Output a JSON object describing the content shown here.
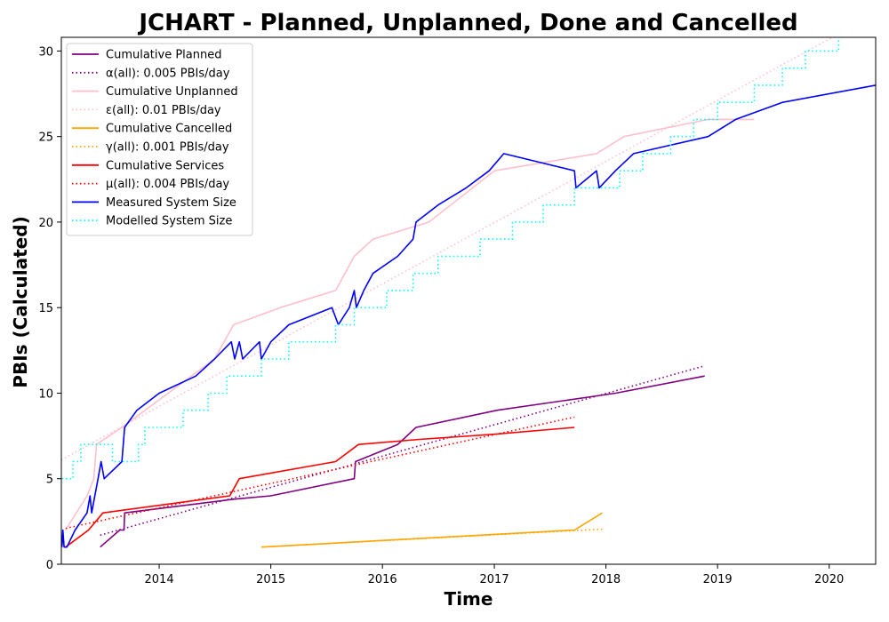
{
  "chart_data": {
    "type": "line",
    "title": "JCHART - Planned, Unplanned, Done  and Cancelled",
    "xlabel": "Time",
    "ylabel": "PBIs (Calculated)",
    "xlim": [
      "2013-02-15",
      "2020-06-01"
    ],
    "ylim": [
      0,
      30.8
    ],
    "x_ticks": [
      "2014",
      "2015",
      "2016",
      "2017",
      "2018",
      "2019",
      "2020"
    ],
    "y_ticks": [
      0,
      5,
      10,
      15,
      20,
      25,
      30
    ],
    "grid": false,
    "legend_position": "top-left",
    "series": [
      {
        "name": "Cumulative Planned",
        "color": "#800080",
        "style": "solid",
        "points": [
          [
            "2013-06-22",
            1
          ],
          [
            "2013-08-25",
            2
          ],
          [
            "2013-09-08",
            2
          ],
          [
            "2013-09-10",
            3
          ],
          [
            "2014-09-01",
            3.8
          ],
          [
            "2015-01-01",
            4
          ],
          [
            "2015-10-01",
            5
          ],
          [
            "2015-10-05",
            6
          ],
          [
            "2016-02-20",
            7
          ],
          [
            "2016-04-20",
            8
          ],
          [
            "2017-01-10",
            9
          ],
          [
            "2018-02-01",
            10
          ],
          [
            "2018-11-20",
            11
          ]
        ]
      },
      {
        "name": "α(all): 0.005 PBIs/day",
        "color": "#800080",
        "style": "dotted",
        "points": [
          [
            "2013-06-22",
            1.7
          ],
          [
            "2018-11-20",
            11.6
          ]
        ]
      },
      {
        "name": "Cumulative Unplanned",
        "color": "#ffc0cb",
        "style": "solid",
        "points": [
          [
            "2013-03-01",
            2
          ],
          [
            "2013-05-10",
            4
          ],
          [
            "2013-06-01",
            5
          ],
          [
            "2013-06-10",
            7
          ],
          [
            "2013-09-01",
            8
          ],
          [
            "2014-07-01",
            12
          ],
          [
            "2014-09-01",
            14
          ],
          [
            "2015-02-01",
            15
          ],
          [
            "2015-08-01",
            16
          ],
          [
            "2015-10-01",
            18
          ],
          [
            "2015-12-01",
            19
          ],
          [
            "2016-06-01",
            20
          ],
          [
            "2017-01-01",
            23
          ],
          [
            "2017-12-01",
            24
          ],
          [
            "2018-03-01",
            25
          ],
          [
            "2018-12-01",
            26
          ],
          [
            "2019-05-01",
            26
          ]
        ]
      },
      {
        "name": "ε(all): 0.01 PBIs/day",
        "color": "#ffc0cb",
        "style": "dotted",
        "points": [
          [
            "2013-02-15",
            6.1
          ],
          [
            "2020-02-01",
            31
          ]
        ]
      },
      {
        "name": "Cumulative Cancelled",
        "color": "#ffa500",
        "style": "solid",
        "points": [
          [
            "2014-12-01",
            1
          ],
          [
            "2017-09-20",
            2
          ],
          [
            "2017-12-20",
            3
          ]
        ]
      },
      {
        "name": "γ(all): 0.001 PBIs/day",
        "color": "#ffa500",
        "style": "dotted",
        "points": [
          [
            "2014-12-01",
            1
          ],
          [
            "2017-12-20",
            2.05
          ]
        ]
      },
      {
        "name": "Cumulative Services",
        "color": "#ff0000",
        "style": "solid",
        "points": [
          [
            "2013-03-01",
            1
          ],
          [
            "2013-05-15",
            2
          ],
          [
            "2013-07-01",
            3
          ],
          [
            "2014-08-20",
            4
          ],
          [
            "2014-09-20",
            5
          ],
          [
            "2015-08-01",
            6
          ],
          [
            "2015-10-15",
            7
          ],
          [
            "2016-05-01",
            7.3
          ],
          [
            "2017-01-01",
            7.6
          ],
          [
            "2017-09-20",
            8
          ]
        ]
      },
      {
        "name": "μ(all): 0.004 PBIs/day",
        "color": "#ff0000",
        "style": "dotted",
        "points": [
          [
            "2013-03-01",
            2.1
          ],
          [
            "2017-09-20",
            8.6
          ]
        ]
      },
      {
        "name": "Measured System Size",
        "color": "#0000ff",
        "style": "solid",
        "points": [
          [
            "2013-02-17",
            1
          ],
          [
            "2013-02-20",
            2
          ],
          [
            "2013-02-24",
            1
          ],
          [
            "2013-03-05",
            1
          ],
          [
            "2013-04-01",
            2
          ],
          [
            "2013-05-10",
            3
          ],
          [
            "2013-05-20",
            4
          ],
          [
            "2013-05-25",
            3
          ],
          [
            "2013-06-15",
            5
          ],
          [
            "2013-06-25",
            6
          ],
          [
            "2013-07-05",
            5
          ],
          [
            "2013-09-01",
            6
          ],
          [
            "2013-09-10",
            8
          ],
          [
            "2013-10-20",
            9
          ],
          [
            "2014-01-01",
            10
          ],
          [
            "2014-05-01",
            11
          ],
          [
            "2014-07-01",
            12
          ],
          [
            "2014-08-25",
            13
          ],
          [
            "2014-09-05",
            12
          ],
          [
            "2014-09-20",
            13
          ],
          [
            "2014-10-01",
            12
          ],
          [
            "2014-11-25",
            13
          ],
          [
            "2014-12-01",
            12
          ],
          [
            "2015-01-01",
            13
          ],
          [
            "2015-03-01",
            14
          ],
          [
            "2015-07-20",
            15
          ],
          [
            "2015-08-10",
            14
          ],
          [
            "2015-09-15",
            15
          ],
          [
            "2015-10-01",
            16
          ],
          [
            "2015-10-08",
            15
          ],
          [
            "2015-11-01",
            16
          ],
          [
            "2015-12-01",
            17
          ],
          [
            "2016-02-20",
            18
          ],
          [
            "2016-04-10",
            19
          ],
          [
            "2016-04-20",
            20
          ],
          [
            "2016-07-01",
            21
          ],
          [
            "2016-10-01",
            22
          ],
          [
            "2016-12-15",
            23
          ],
          [
            "2017-02-01",
            24
          ],
          [
            "2017-09-20",
            23
          ],
          [
            "2017-09-25",
            22
          ],
          [
            "2017-12-01",
            23
          ],
          [
            "2017-12-10",
            22
          ],
          [
            "2018-02-01",
            23
          ],
          [
            "2018-04-01",
            24
          ],
          [
            "2018-12-01",
            25
          ],
          [
            "2019-03-01",
            26
          ],
          [
            "2019-08-01",
            27
          ],
          [
            "2020-06-01",
            28
          ]
        ]
      },
      {
        "name": "Modelled System Size",
        "color": "#00ffff",
        "style": "dotted",
        "points": [
          [
            "2013-02-17",
            5
          ],
          [
            "2013-03-25",
            5
          ],
          [
            "2013-03-25",
            6
          ],
          [
            "2013-04-20",
            6
          ],
          [
            "2013-04-20",
            7
          ],
          [
            "2013-08-01",
            7
          ],
          [
            "2013-08-01",
            6
          ],
          [
            "2013-10-25",
            6
          ],
          [
            "2013-10-25",
            7
          ],
          [
            "2013-11-15",
            7
          ],
          [
            "2013-11-15",
            8
          ],
          [
            "2014-03-20",
            8
          ],
          [
            "2014-03-20",
            9
          ],
          [
            "2014-06-10",
            9
          ],
          [
            "2014-06-10",
            10
          ],
          [
            "2014-08-10",
            10
          ],
          [
            "2014-08-10",
            11
          ],
          [
            "2014-12-01",
            11
          ],
          [
            "2014-12-01",
            12
          ],
          [
            "2015-03-01",
            12
          ],
          [
            "2015-03-01",
            13
          ],
          [
            "2015-08-01",
            13
          ],
          [
            "2015-08-01",
            14
          ],
          [
            "2015-10-01",
            14
          ],
          [
            "2015-10-01",
            15
          ],
          [
            "2016-01-15",
            15
          ],
          [
            "2016-01-15",
            16
          ],
          [
            "2016-04-10",
            16
          ],
          [
            "2016-04-10",
            17
          ],
          [
            "2016-07-01",
            17
          ],
          [
            "2016-07-01",
            18
          ],
          [
            "2016-11-15",
            18
          ],
          [
            "2016-11-15",
            19
          ],
          [
            "2017-03-01",
            19
          ],
          [
            "2017-03-01",
            20
          ],
          [
            "2017-06-10",
            20
          ],
          [
            "2017-06-10",
            21
          ],
          [
            "2017-09-20",
            21
          ],
          [
            "2017-09-20",
            22
          ],
          [
            "2018-02-15",
            22
          ],
          [
            "2018-02-15",
            23
          ],
          [
            "2018-05-01",
            23
          ],
          [
            "2018-05-01",
            24
          ],
          [
            "2018-08-01",
            24
          ],
          [
            "2018-08-01",
            25
          ],
          [
            "2018-10-15",
            25
          ],
          [
            "2018-10-15",
            26
          ],
          [
            "2019-01-01",
            26
          ],
          [
            "2019-01-01",
            27
          ],
          [
            "2019-05-01",
            27
          ],
          [
            "2019-05-01",
            28
          ],
          [
            "2019-08-01",
            28
          ],
          [
            "2019-08-01",
            29
          ],
          [
            "2019-10-15",
            29
          ],
          [
            "2019-10-15",
            30
          ],
          [
            "2020-02-01",
            30
          ],
          [
            "2020-02-01",
            31
          ],
          [
            "2020-06-01",
            31
          ]
        ]
      }
    ]
  }
}
